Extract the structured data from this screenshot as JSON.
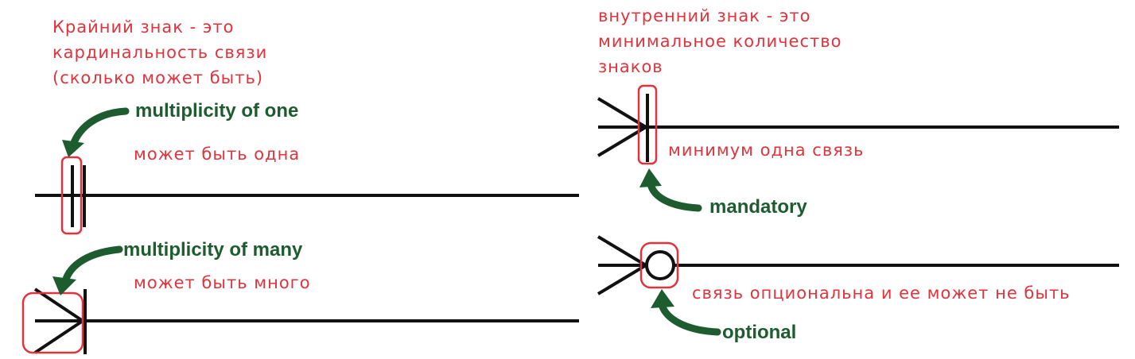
{
  "notes": {
    "outer_mark": [
      "Крайний знак - это",
      "кардинальность связи",
      "(сколько может быть)"
    ],
    "inner_mark": [
      "внутренний знак - это",
      "минимальное количество",
      "знаков"
    ],
    "one_meaning": "может быть одна",
    "many_meaning": "может быть много",
    "mandatory_meaning": "минимум одна связь",
    "optional_meaning": "связь опциональна и ее может не быть"
  },
  "terms": {
    "multiplicity_one": "multiplicity of one",
    "multiplicity_many": "multiplicity of many",
    "mandatory": "mandatory",
    "optional": "optional"
  },
  "colors": {
    "annotation": "#e0343c",
    "term": "#1c5c2e",
    "line": "#111111"
  },
  "icons": {
    "arrow": "curved-arrow-icon"
  }
}
